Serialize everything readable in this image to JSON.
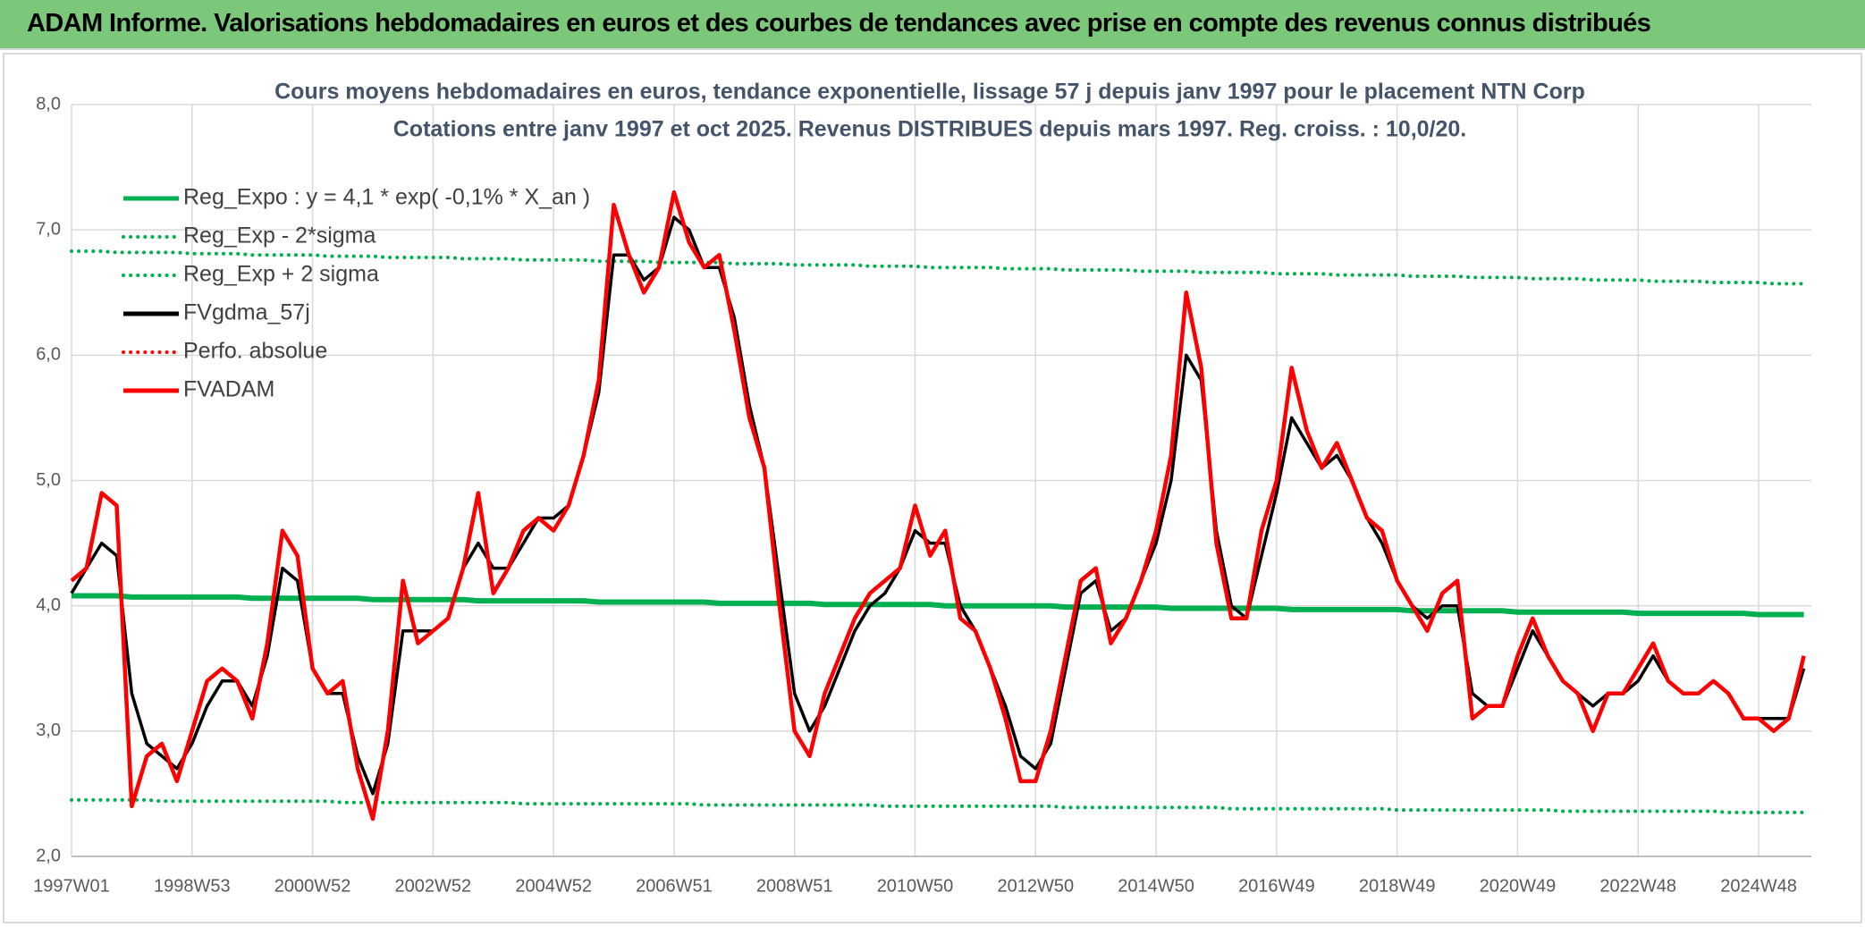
{
  "header": {
    "title": "ADAM Informe. Valorisations hebdomadaires en euros et des courbes de tendances avec prise en compte des revenus connus distribués"
  },
  "chart_data": {
    "type": "line",
    "title": "Cours moyens hebdomadaires en euros, tendance exponentielle, lissage 57 j depuis janv 1997 pour le placement NTN Corp",
    "subtitle": "Cotations entre janv 1997 et oct 2025. Revenus DISTRIBUES depuis mars 1997. Reg. croiss. : 10,0/20.",
    "categories": [
      "1997W01",
      null,
      null,
      null,
      null,
      null,
      null,
      null,
      "1998W53",
      null,
      null,
      null,
      null,
      null,
      null,
      null,
      "2000W52",
      null,
      null,
      null,
      null,
      null,
      null,
      null,
      "2002W52",
      null,
      null,
      null,
      null,
      null,
      null,
      null,
      "2004W52",
      null,
      null,
      null,
      null,
      null,
      null,
      null,
      "2006W51",
      null,
      null,
      null,
      null,
      null,
      null,
      null,
      "2008W51",
      null,
      null,
      null,
      null,
      null,
      null,
      null,
      "2010W50",
      null,
      null,
      null,
      null,
      null,
      null,
      null,
      "2012W50",
      null,
      null,
      null,
      null,
      null,
      null,
      null,
      "2014W50",
      null,
      null,
      null,
      null,
      null,
      null,
      null,
      "2016W49",
      null,
      null,
      null,
      null,
      null,
      null,
      null,
      "2018W49",
      null,
      null,
      null,
      null,
      null,
      null,
      null,
      "2020W49",
      null,
      null,
      null,
      null,
      null,
      null,
      null,
      "2022W48",
      null,
      null,
      null,
      null,
      null,
      null,
      null,
      "2024W48",
      null,
      null,
      null
    ],
    "ylim": [
      2,
      8
    ],
    "yticks": [
      {
        "value": 2,
        "label": "2,0"
      },
      {
        "value": 3,
        "label": "3,0"
      },
      {
        "value": 4,
        "label": "4,0"
      },
      {
        "value": 5,
        "label": "5,0"
      },
      {
        "value": 6,
        "label": "6,0"
      },
      {
        "value": 7,
        "label": "7,0"
      },
      {
        "value": 8,
        "label": "8,0"
      }
    ],
    "grid": true,
    "legend": "upper left",
    "series": [
      {
        "name": "Reg_Expo : y = 4,1 * exp( -0,1% *  X_an )",
        "color": "#00b050",
        "dash": false,
        "width": 6,
        "values": [
          4.08,
          4.08,
          4.08,
          4.08,
          4.07,
          4.07,
          4.07,
          4.07,
          4.07,
          4.07,
          4.07,
          4.07,
          4.06,
          4.06,
          4.06,
          4.06,
          4.06,
          4.06,
          4.06,
          4.06,
          4.05,
          4.05,
          4.05,
          4.05,
          4.05,
          4.05,
          4.05,
          4.04,
          4.04,
          4.04,
          4.04,
          4.04,
          4.04,
          4.04,
          4.04,
          4.03,
          4.03,
          4.03,
          4.03,
          4.03,
          4.03,
          4.03,
          4.03,
          4.02,
          4.02,
          4.02,
          4.02,
          4.02,
          4.02,
          4.02,
          4.01,
          4.01,
          4.01,
          4.01,
          4.01,
          4.01,
          4.01,
          4.01,
          4,
          4,
          4,
          4,
          4,
          4,
          4,
          4,
          3.99,
          3.99,
          3.99,
          3.99,
          3.99,
          3.99,
          3.99,
          3.98,
          3.98,
          3.98,
          3.98,
          3.98,
          3.98,
          3.98,
          3.98,
          3.97,
          3.97,
          3.97,
          3.97,
          3.97,
          3.97,
          3.97,
          3.97,
          3.96,
          3.96,
          3.96,
          3.96,
          3.96,
          3.96,
          3.96,
          3.95,
          3.95,
          3.95,
          3.95,
          3.95,
          3.95,
          3.95,
          3.95,
          3.94,
          3.94,
          3.94,
          3.94,
          3.94,
          3.94,
          3.94,
          3.94,
          3.93,
          3.93,
          3.93,
          3.93
        ]
      },
      {
        "name": "Reg_Exp - 2*sigma",
        "color": "#00b050",
        "dash": true,
        "width": 4,
        "values": [
          6.83,
          6.83,
          6.83,
          6.82,
          6.82,
          6.82,
          6.82,
          6.82,
          6.81,
          6.81,
          6.81,
          6.81,
          6.8,
          6.8,
          6.8,
          6.8,
          6.8,
          6.79,
          6.79,
          6.79,
          6.79,
          6.78,
          6.78,
          6.78,
          6.78,
          6.78,
          6.77,
          6.77,
          6.77,
          6.77,
          6.76,
          6.76,
          6.76,
          6.76,
          6.76,
          6.75,
          6.75,
          6.75,
          6.75,
          6.74,
          6.74,
          6.74,
          6.74,
          6.74,
          6.73,
          6.73,
          6.73,
          6.73,
          6.72,
          6.72,
          6.72,
          6.72,
          6.72,
          6.71,
          6.71,
          6.71,
          6.71,
          6.7,
          6.7,
          6.7,
          6.7,
          6.7,
          6.69,
          6.69,
          6.69,
          6.69,
          6.68,
          6.68,
          6.68,
          6.68,
          6.68,
          6.67,
          6.67,
          6.67,
          6.67,
          6.66,
          6.66,
          6.66,
          6.66,
          6.66,
          6.65,
          6.65,
          6.65,
          6.65,
          6.64,
          6.64,
          6.64,
          6.64,
          6.64,
          6.63,
          6.63,
          6.63,
          6.63,
          6.62,
          6.62,
          6.62,
          6.62,
          6.61,
          6.61,
          6.61,
          6.61,
          6.6,
          6.6,
          6.6,
          6.6,
          6.59,
          6.59,
          6.59,
          6.59,
          6.58,
          6.58,
          6.58,
          6.58,
          6.57,
          6.57,
          6.57
        ]
      },
      {
        "name": "Reg_Exp + 2 sigma",
        "color": "#00b050",
        "dash": true,
        "width": 4,
        "values": [
          2.45,
          2.45,
          2.45,
          2.45,
          2.45,
          2.45,
          2.44,
          2.44,
          2.44,
          2.44,
          2.44,
          2.44,
          2.44,
          2.44,
          2.44,
          2.44,
          2.44,
          2.44,
          2.43,
          2.43,
          2.43,
          2.43,
          2.43,
          2.43,
          2.43,
          2.43,
          2.43,
          2.43,
          2.43,
          2.43,
          2.42,
          2.42,
          2.42,
          2.42,
          2.42,
          2.42,
          2.42,
          2.42,
          2.42,
          2.42,
          2.42,
          2.42,
          2.41,
          2.41,
          2.41,
          2.41,
          2.41,
          2.41,
          2.41,
          2.41,
          2.41,
          2.41,
          2.41,
          2.41,
          2.4,
          2.4,
          2.4,
          2.4,
          2.4,
          2.4,
          2.4,
          2.4,
          2.4,
          2.4,
          2.4,
          2.4,
          2.39,
          2.39,
          2.39,
          2.39,
          2.39,
          2.39,
          2.39,
          2.39,
          2.39,
          2.39,
          2.39,
          2.38,
          2.38,
          2.38,
          2.38,
          2.38,
          2.38,
          2.38,
          2.38,
          2.38,
          2.38,
          2.38,
          2.37,
          2.37,
          2.37,
          2.37,
          2.37,
          2.37,
          2.37,
          2.37,
          2.37,
          2.37,
          2.37,
          2.36,
          2.36,
          2.36,
          2.36,
          2.36,
          2.36,
          2.36,
          2.36,
          2.36,
          2.36,
          2.36,
          2.35,
          2.35,
          2.35,
          2.35,
          2.35,
          2.35
        ]
      },
      {
        "name": "FVgdma_57j",
        "color": "#000000",
        "dash": false,
        "width": 3.5,
        "values": [
          4.1,
          4.3,
          4.5,
          4.4,
          3.3,
          2.9,
          2.8,
          2.7,
          2.9,
          3.2,
          3.4,
          3.4,
          3.2,
          3.6,
          4.3,
          4.2,
          3.5,
          3.3,
          3.3,
          2.8,
          2.5,
          2.9,
          3.8,
          3.8,
          3.8,
          3.9,
          4.3,
          4.5,
          4.3,
          4.3,
          4.5,
          4.7,
          4.7,
          4.8,
          5.2,
          5.7,
          6.8,
          6.8,
          6.6,
          6.7,
          7.1,
          7,
          6.7,
          6.7,
          6.3,
          5.6,
          5.1,
          4.2,
          3.3,
          3,
          3.2,
          3.5,
          3.8,
          4,
          4.1,
          4.3,
          4.6,
          4.5,
          4.5,
          4,
          3.8,
          3.5,
          3.2,
          2.8,
          2.7,
          2.9,
          3.5,
          4.1,
          4.2,
          3.8,
          3.9,
          4.2,
          4.5,
          5,
          6,
          5.8,
          4.6,
          4,
          3.9,
          4.4,
          4.9,
          5.5,
          5.3,
          5.1,
          5.2,
          5,
          4.7,
          4.5,
          4.2,
          4,
          3.9,
          4,
          4,
          3.3,
          3.2,
          3.2,
          3.5,
          3.8,
          3.6,
          3.4,
          3.3,
          3.2,
          3.3,
          3.3,
          3.4,
          3.6,
          3.4,
          3.3,
          3.3,
          3.4,
          3.3,
          3.1,
          3.1,
          3.1,
          3.1,
          3.5
        ]
      },
      {
        "name": "Perfo. absolue",
        "color": "#ff0000",
        "dash": true,
        "width": 4
      },
      {
        "name": "FVADAM",
        "color": "#ff0000",
        "dash": false,
        "width": 4.5,
        "values": [
          4.2,
          4.3,
          4.9,
          4.8,
          2.4,
          2.8,
          2.9,
          2.6,
          3,
          3.4,
          3.5,
          3.4,
          3.1,
          3.7,
          4.6,
          4.4,
          3.5,
          3.3,
          3.4,
          2.7,
          2.3,
          3,
          4.2,
          3.7,
          3.8,
          3.9,
          4.3,
          4.9,
          4.1,
          4.3,
          4.6,
          4.7,
          4.6,
          4.8,
          5.2,
          5.8,
          7.2,
          6.8,
          6.5,
          6.7,
          7.3,
          6.9,
          6.7,
          6.8,
          6.2,
          5.5,
          5.1,
          4,
          3,
          2.8,
          3.3,
          3.6,
          3.9,
          4.1,
          4.2,
          4.3,
          4.8,
          4.4,
          4.6,
          3.9,
          3.8,
          3.5,
          3.1,
          2.6,
          2.6,
          3,
          3.6,
          4.2,
          4.3,
          3.7,
          3.9,
          4.2,
          4.6,
          5.2,
          6.5,
          5.9,
          4.5,
          3.9,
          3.9,
          4.6,
          5,
          5.9,
          5.4,
          5.1,
          5.3,
          5,
          4.7,
          4.6,
          4.2,
          4,
          3.8,
          4.1,
          4.2,
          3.1,
          3.2,
          3.2,
          3.6,
          3.9,
          3.6,
          3.4,
          3.3,
          3,
          3.3,
          3.3,
          3.5,
          3.7,
          3.4,
          3.3,
          3.3,
          3.4,
          3.3,
          3.1,
          3.1,
          3,
          3.1,
          3.6
        ]
      }
    ]
  }
}
